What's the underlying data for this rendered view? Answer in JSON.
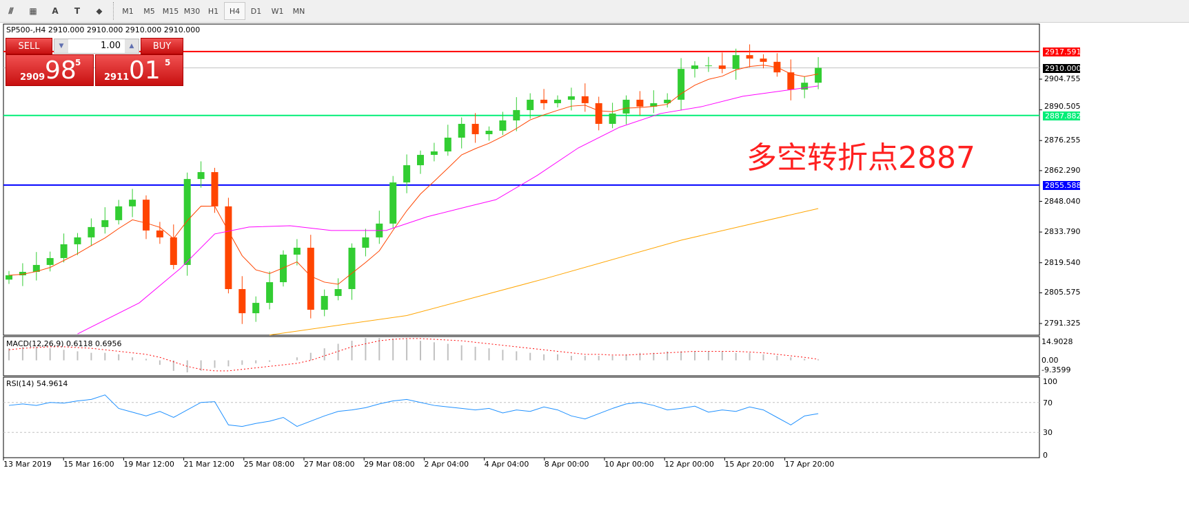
{
  "toolbar": {
    "icons": [
      "fibonacci-expansion-icon",
      "fibonacci-fan-icon",
      "text-icon",
      "text-label-icon",
      "arrows-icon"
    ],
    "icon_glyphs": [
      "⫻",
      "▦",
      "A",
      "T",
      "⬥"
    ],
    "timeframes": [
      "M1",
      "M5",
      "M15",
      "M30",
      "H1",
      "H4",
      "D1",
      "W1",
      "MN"
    ],
    "active_timeframe": "H4"
  },
  "chart": {
    "symbol_line": "SP500-,H4  2910.000 2910.000 2910.000 2910.000",
    "trade": {
      "sell_label": "SELL",
      "buy_label": "BUY",
      "lot": "1.00",
      "sell": {
        "pre": "2909",
        "big": "98",
        "sup": "5"
      },
      "buy": {
        "pre": "2911",
        "big": "01",
        "sup": "5"
      }
    },
    "annotation": "多空转折点2887",
    "price_ticks": [
      "2904.755",
      "2890.505",
      "2876.255",
      "2862.290",
      "2848.040",
      "2833.790",
      "2819.540",
      "2805.575",
      "2791.325"
    ],
    "levels": [
      {
        "value": 2917.591,
        "label": "2917.591",
        "color": "#ff0000"
      },
      {
        "value": 2887.882,
        "label": "2887.882",
        "color": "#00ee77"
      },
      {
        "value": 2855.588,
        "label": "2855.588",
        "color": "#0000ff"
      }
    ],
    "current": {
      "value": 2910.0,
      "label": "2910.000"
    },
    "dates": [
      "13 Mar 2019",
      "15 Mar 16:00",
      "19 Mar 12:00",
      "21 Mar 12:00",
      "25 Mar 08:00",
      "27 Mar 08:00",
      "29 Mar 08:00",
      "2 Apr 04:00",
      "4 Apr 04:00",
      "8 Apr 00:00",
      "10 Apr 00:00",
      "12 Apr 00:00",
      "15 Apr 20:00",
      "17 Apr 20:00"
    ],
    "colors": {
      "bull": "#32cd32",
      "bear": "#ff4500",
      "ma_fast": "#ff4500",
      "ma_mid": "#ff00ff",
      "ma_slow": "#ffa500",
      "rsi": "#1e90ff",
      "macd_hist": "#c0c0c0",
      "macd_signal": "#ff0000"
    }
  },
  "chart_data": {
    "type": "candlestick",
    "closes": [
      2813.7,
      2815.3,
      2818.5,
      2821.7,
      2828.1,
      2831.3,
      2836.1,
      2839.3,
      2845.7,
      2848.8,
      2834.5,
      2831.3,
      2818.5,
      2858.4,
      2861.6,
      2845.7,
      2807.3,
      2796.1,
      2800.9,
      2810.5,
      2823.3,
      2826.5,
      2797.7,
      2804.1,
      2807.3,
      2826.5,
      2831.3,
      2837.7,
      2856.8,
      2864.8,
      2869.6,
      2871.2,
      2877.6,
      2884.0,
      2879.2,
      2880.8,
      2885.6,
      2890.4,
      2895.2,
      2893.6,
      2895.2,
      2896.8,
      2893.6,
      2884.0,
      2888.8,
      2895.2,
      2892.0,
      2893.6,
      2895.2,
      2909.5,
      2911.1,
      2911.1,
      2909.5,
      2915.9,
      2914.3,
      2912.8,
      2907.9,
      2899.9,
      2903.1,
      2910.0
    ],
    "ma_mid": [
      [
        5,
        2786.5
      ],
      [
        9.5,
        2800.9
      ],
      [
        12.5,
        2816.9
      ],
      [
        15,
        2832.9
      ],
      [
        17.5,
        2836.1
      ],
      [
        20.5,
        2836.7
      ],
      [
        23.5,
        2834.5
      ],
      [
        27.5,
        2834.5
      ],
      [
        30.5,
        2840.9
      ],
      [
        33.5,
        2845.7
      ],
      [
        35.5,
        2848.8
      ],
      [
        38.5,
        2860.0
      ],
      [
        41.5,
        2872.8
      ],
      [
        44.5,
        2882.4
      ],
      [
        47.5,
        2888.8
      ],
      [
        50.5,
        2892.0
      ],
      [
        53.5,
        2896.8
      ],
      [
        59,
        2901.6
      ]
    ],
    "ma_slow": [
      [
        19,
        2786.0
      ],
      [
        29,
        2795.0
      ],
      [
        39,
        2812.0
      ],
      [
        49,
        2830.0
      ],
      [
        59,
        2844.7
      ]
    ],
    "ylim": [
      2786,
      2924
    ],
    "macd": {
      "label": "MACD(12,26,9) 0.6118 0.6956",
      "ticks": [
        "14.9028",
        "0.00",
        "-9.3599"
      ],
      "range": [
        -9.3599,
        14.9028
      ],
      "hist": [
        8,
        9,
        9,
        8,
        7,
        6,
        5,
        5,
        4,
        2,
        1,
        -3,
        -7,
        -8,
        -7,
        -5,
        -4,
        -3,
        -2,
        -1,
        0,
        2,
        5,
        8,
        11,
        13,
        14.9,
        14.9,
        14.5,
        14,
        13,
        12,
        11,
        10,
        9,
        8,
        7,
        6,
        5,
        4,
        4,
        3,
        3,
        3,
        3,
        4,
        5,
        5,
        6,
        6,
        6,
        6,
        6,
        5,
        5,
        4,
        3,
        2,
        1,
        0.6
      ],
      "signal": [
        7,
        8,
        8.5,
        9,
        9,
        8.5,
        8,
        7,
        6,
        5,
        4,
        2,
        -1,
        -4,
        -6,
        -7,
        -7,
        -6,
        -5,
        -4,
        -3,
        -2,
        0,
        3,
        6,
        9,
        11,
        13,
        14,
        14.5,
        14.5,
        14,
        13.5,
        13,
        12,
        11,
        10,
        9,
        8,
        7,
        6,
        5,
        4,
        4,
        3.5,
        3.5,
        4,
        4.5,
        5,
        5.5,
        6,
        6,
        6,
        6,
        5.5,
        5,
        4,
        3,
        2,
        0.7
      ]
    },
    "rsi": {
      "label": "RSI(14) 54.9614",
      "ticks": [
        "100",
        "70",
        "30",
        "0"
      ],
      "levels": [
        70,
        30
      ],
      "values": [
        66,
        68,
        66,
        70,
        69,
        72,
        74,
        80,
        62,
        57,
        52,
        58,
        50,
        60,
        70,
        71,
        40,
        38,
        42,
        45,
        50,
        38,
        45,
        52,
        58,
        60,
        63,
        68,
        72,
        74,
        70,
        66,
        64,
        62,
        60,
        62,
        56,
        60,
        58,
        64,
        60,
        52,
        48,
        55,
        62,
        68,
        70,
        66,
        60,
        62,
        65,
        57,
        60,
        58,
        64,
        60,
        50,
        40,
        52,
        55
      ]
    }
  }
}
